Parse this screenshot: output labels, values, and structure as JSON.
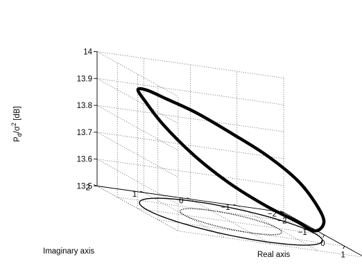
{
  "chart_data": {
    "type": "line",
    "projection": "3d",
    "title": "",
    "xlabel": "Real axis",
    "ylabel": "Imaginary axis",
    "zlabel": "P_d/σ^2 [dB]",
    "xlim": [
      -2,
      2
    ],
    "ylim": [
      -2,
      2
    ],
    "zlim": [
      13.5,
      14
    ],
    "xticks": [
      "−2",
      "−1",
      "0",
      "1",
      "2"
    ],
    "yticks": [
      "−2",
      "−1",
      "0",
      "1",
      "2"
    ],
    "zticks": [
      "13.5",
      "13.6",
      "13.7",
      "13.8",
      "13.9",
      "14"
    ],
    "grid": true,
    "series": [
      {
        "style": "thick solid",
        "description_free": true,
        "points": [
          [
            0,
            -1.8,
            13.51
          ],
          [
            0.7,
            -1.69,
            13.57
          ],
          [
            1.27,
            -1.27,
            13.65
          ],
          [
            1.69,
            -0.7,
            13.74
          ],
          [
            1.8,
            0,
            13.82
          ],
          [
            1.69,
            0.7,
            13.88
          ],
          [
            1.27,
            1.27,
            13.925
          ],
          [
            0.7,
            1.69,
            13.945
          ],
          [
            0,
            1.8,
            13.945
          ],
          [
            -0.7,
            1.69,
            13.92
          ],
          [
            -1.27,
            1.27,
            13.86
          ],
          [
            -1.69,
            0.7,
            13.77
          ],
          [
            -1.8,
            0,
            13.67
          ],
          [
            -1.69,
            -0.7,
            13.59
          ],
          [
            -1.27,
            -1.27,
            13.54
          ],
          [
            -0.7,
            -1.69,
            13.515
          ],
          [
            0,
            -1.8,
            13.51
          ]
        ]
      },
      {
        "style": "thin solid",
        "shape": "circle",
        "radius": 1.8,
        "z": 13.5
      },
      {
        "style": "dotted",
        "shape": "circle",
        "radius": 1.0,
        "z": 13.5
      }
    ]
  }
}
